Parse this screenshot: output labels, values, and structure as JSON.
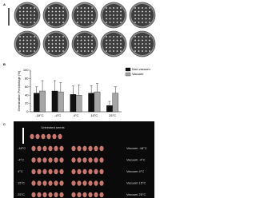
{
  "panel_a": {
    "label": "A",
    "dishes": [
      "a",
      "b",
      "c",
      "d",
      "e",
      "f",
      "g",
      "h",
      "i",
      "j"
    ]
  },
  "chart_data": {
    "type": "bar",
    "panel_label": "B",
    "y_label": "Germination Percentage (%)",
    "categories": [
      "-18°C",
      "-4°C",
      "4°C",
      "15°C",
      "25°C"
    ],
    "series": [
      {
        "name": "Non-vacuum",
        "color": "#111111",
        "values": [
          45,
          50,
          42,
          45,
          15
        ],
        "errors": [
          15,
          25,
          20,
          18,
          10
        ]
      },
      {
        "name": "Vacuum",
        "color": "#a6a6a6",
        "values": [
          50,
          48,
          40,
          48,
          45
        ],
        "errors": [
          25,
          22,
          25,
          20,
          15
        ]
      }
    ],
    "ylim": [
      0,
      100
    ],
    "yticks": [
      0,
      20,
      40,
      60,
      80,
      100
    ],
    "legend": "upper right"
  },
  "panel_c": {
    "label": "C",
    "untreated": "Untreated seeds",
    "rows": [
      {
        "left": "-18°C",
        "right": "Vacuum -18°C"
      },
      {
        "left": "-4°C",
        "right": "Vacuum -4°C"
      },
      {
        "left": "4°C",
        "right": "Vacuum 4°C"
      },
      {
        "left": "15°C",
        "right": "Vacuum 15°C"
      },
      {
        "left": "25°C",
        "right": "Vacuum 25°C"
      }
    ]
  }
}
